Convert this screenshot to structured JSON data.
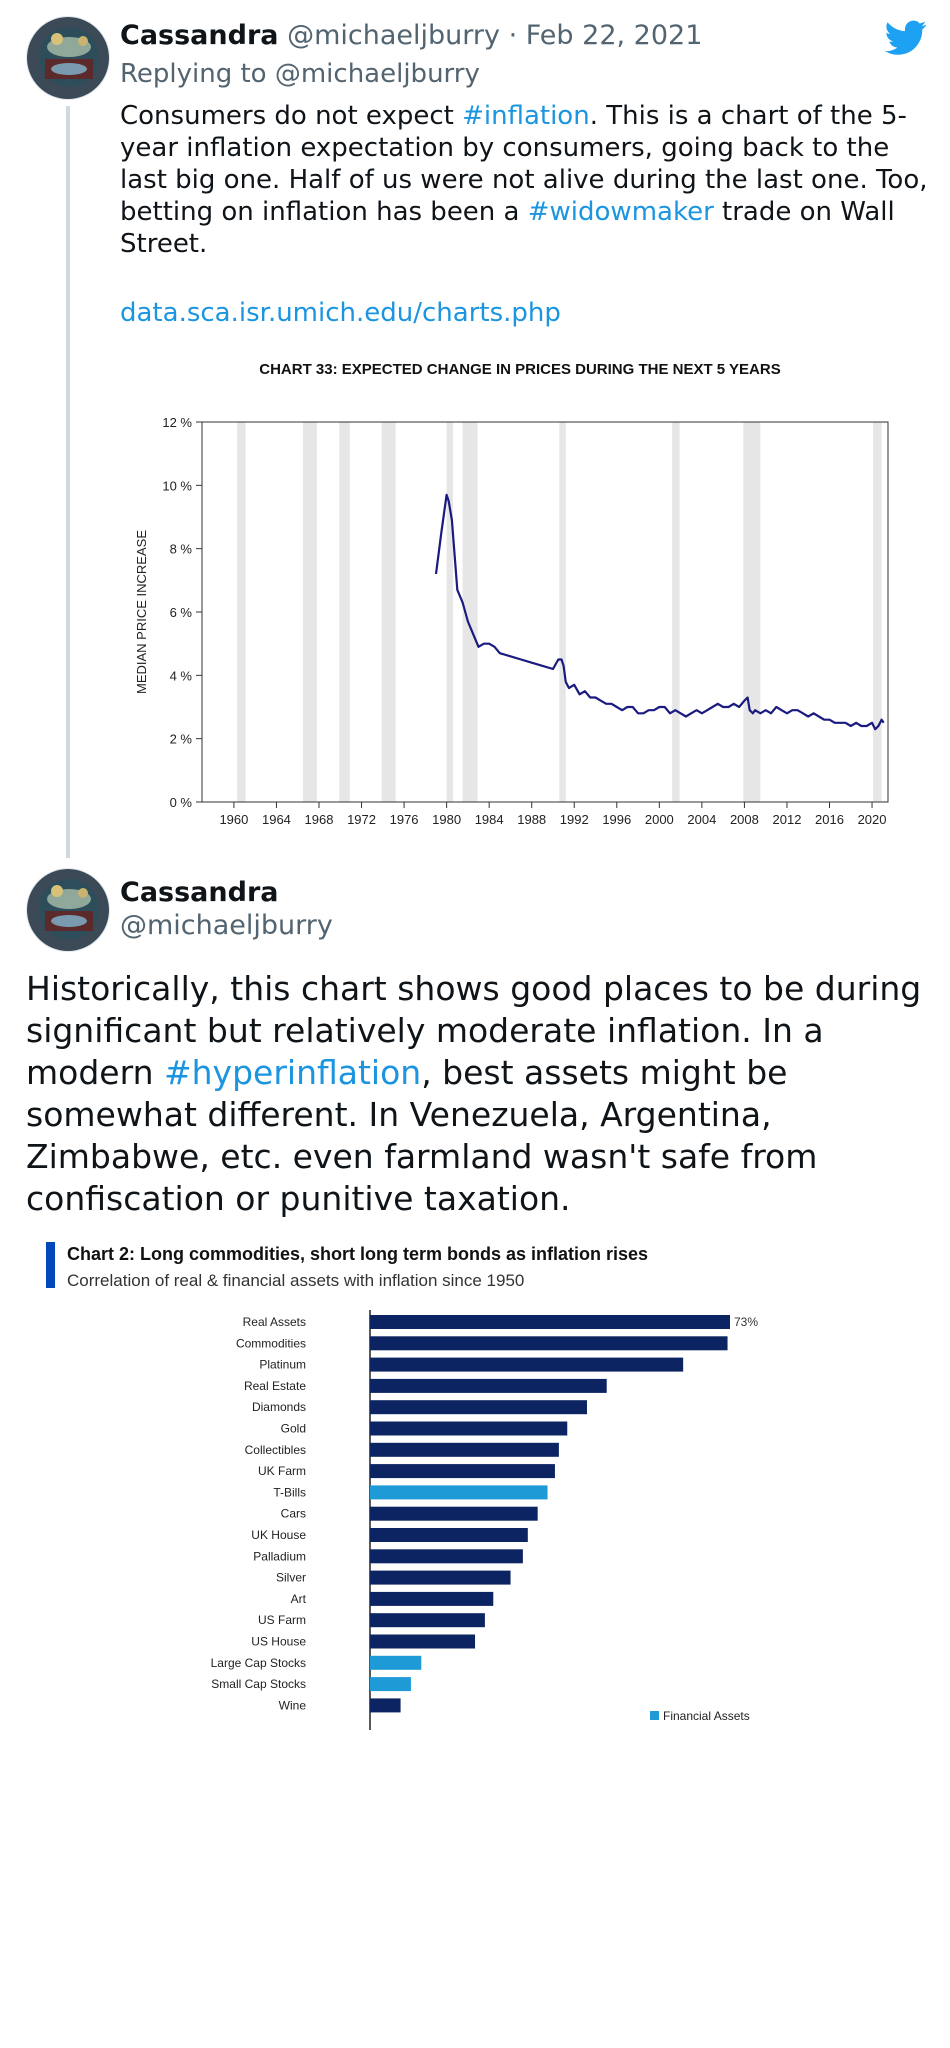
{
  "tweet1": {
    "name": "Cassandra",
    "handle": "@michaeljburry",
    "separator": "·",
    "date": "Feb 22, 2021",
    "reply_prefix": "Replying to",
    "reply_handle": "@michaeljburry",
    "text_parts": [
      "Consumers do not expect ",
      "#inflation",
      ". This is a chart of the 5-year inflation expectation by consumers, going back to the last big one. Half of us were not alive during the last one. Too, betting on inflation has been a ",
      "#widowmaker",
      " trade on Wall Street."
    ],
    "link": "data.sca.isr.umich.edu/charts.php"
  },
  "tweet2": {
    "name": "Cassandra",
    "handle": "@michaeljburry",
    "text_parts": [
      "Historically, this chart shows good places to be during significant but relatively moderate inflation. In a modern ",
      "#hyperinflation",
      ", best assets might be somewhat different. In Venezuela, Argentina, Zimbabwe, etc. even farmland wasn't safe from confiscation or punitive taxation."
    ]
  },
  "colors": {
    "twitter_blue": "#1da1f2",
    "link_blue": "#1b95e0",
    "navy_line": "#1a1a80",
    "bar_dark": "#0c2461",
    "bar_light": "#1e9bd7",
    "recession_band": "#e6e6e6"
  },
  "chart_data": [
    {
      "type": "line",
      "title": "CHART 33: EXPECTED CHANGE IN PRICES DURING THE NEXT 5 YEARS",
      "ylabel": "MEDIAN PRICE INCREASE",
      "xlabel": "",
      "ylim": [
        0,
        12
      ],
      "xlim": [
        1957,
        2021.5
      ],
      "y_ticks": [
        "0 %",
        "2 %",
        "4 %",
        "6 %",
        "8 %",
        "10 %",
        "12 %"
      ],
      "y_tick_values": [
        0,
        2,
        4,
        6,
        8,
        10,
        12
      ],
      "x_ticks": [
        "1960",
        "1964",
        "1968",
        "1972",
        "1976",
        "1980",
        "1984",
        "1988",
        "1992",
        "1996",
        "2000",
        "2004",
        "2008",
        "2012",
        "2016",
        "2020"
      ],
      "x_tick_values": [
        1960,
        1964,
        1968,
        1972,
        1976,
        1980,
        1984,
        1988,
        1992,
        1996,
        2000,
        2004,
        2008,
        2012,
        2016,
        2020
      ],
      "recessions": [
        [
          1960.3,
          1961.1
        ],
        [
          1966.5,
          1967.8
        ],
        [
          1969.9,
          1970.9
        ],
        [
          1973.9,
          1975.2
        ],
        [
          1980.0,
          1980.6
        ],
        [
          1981.5,
          1982.9
        ],
        [
          1990.6,
          1991.2
        ],
        [
          2001.2,
          2001.9
        ],
        [
          2007.9,
          2009.5
        ],
        [
          2020.1,
          2020.9
        ]
      ],
      "series": [
        {
          "x": [
            1979.0,
            1979.5,
            1980.0,
            1980.2,
            1980.5,
            1980.8,
            1981.0,
            1981.5,
            1982.0,
            1982.5,
            1983.0,
            1983.5,
            1984.0,
            1984.5,
            1985.0,
            1986.0,
            1987.0,
            1988.0,
            1989.0,
            1990.0,
            1990.5,
            1990.8,
            1991.0,
            1991.2,
            1991.5,
            1992.0,
            1992.5,
            1993.0,
            1993.5,
            1994.0,
            1994.5,
            1995.0,
            1995.5,
            1996.0,
            1996.5,
            1997.0,
            1997.5,
            1998.0,
            1998.5,
            1999.0,
            1999.5,
            2000.0,
            2000.5,
            2001.0,
            2001.5,
            2002.0,
            2002.5,
            2003.0,
            2003.5,
            2004.0,
            2004.5,
            2005.0,
            2005.5,
            2006.0,
            2006.5,
            2007.0,
            2007.5,
            2008.0,
            2008.3,
            2008.5,
            2008.8,
            2009.0,
            2009.5,
            2010.0,
            2010.5,
            2011.0,
            2011.5,
            2012.0,
            2012.5,
            2013.0,
            2013.5,
            2014.0,
            2014.5,
            2015.0,
            2015.5,
            2016.0,
            2016.5,
            2017.0,
            2017.5,
            2018.0,
            2018.5,
            2019.0,
            2019.5,
            2020.0,
            2020.3,
            2020.6,
            2020.9,
            2021.1
          ],
          "y": [
            7.2,
            8.5,
            9.7,
            9.5,
            8.9,
            7.6,
            6.7,
            6.3,
            5.7,
            5.3,
            4.9,
            5.0,
            5.0,
            4.9,
            4.7,
            4.6,
            4.5,
            4.4,
            4.3,
            4.2,
            4.5,
            4.5,
            4.3,
            3.8,
            3.6,
            3.7,
            3.4,
            3.5,
            3.3,
            3.3,
            3.2,
            3.1,
            3.1,
            3.0,
            2.9,
            3.0,
            3.0,
            2.8,
            2.8,
            2.9,
            2.9,
            3.0,
            3.0,
            2.8,
            2.9,
            2.8,
            2.7,
            2.8,
            2.9,
            2.8,
            2.9,
            3.0,
            3.1,
            3.0,
            3.0,
            3.1,
            3.0,
            3.2,
            3.3,
            2.9,
            2.8,
            2.9,
            2.8,
            2.9,
            2.8,
            3.0,
            2.9,
            2.8,
            2.9,
            2.9,
            2.8,
            2.7,
            2.8,
            2.7,
            2.6,
            2.6,
            2.5,
            2.5,
            2.5,
            2.4,
            2.5,
            2.4,
            2.4,
            2.5,
            2.3,
            2.4,
            2.6,
            2.5
          ]
        }
      ]
    },
    {
      "type": "bar",
      "orientation": "horizontal",
      "title": "Chart 2: Long commodities, short long term bonds as inflation rises",
      "subtitle": "Correlation of real & financial assets with inflation since 1950",
      "categories": [
        "Real Assets",
        "Commodities",
        "Platinum",
        "Real Estate",
        "Diamonds",
        "Gold",
        "Collectibles",
        "UK Farm",
        "T-Bills",
        "Cars",
        "UK House",
        "Palladium",
        "Silver",
        "Art",
        "US Farm",
        "US House",
        "Large Cap Stocks",
        "Small Cap Stocks",
        "Wine"
      ],
      "values": [
        73,
        72.5,
        63.5,
        48,
        44,
        40,
        38.3,
        37.5,
        36,
        34,
        32,
        31,
        28.5,
        25,
        23.3,
        21.3,
        10.4,
        8.3,
        6.2
      ],
      "financial": [
        false,
        false,
        false,
        false,
        false,
        false,
        false,
        false,
        true,
        false,
        false,
        false,
        false,
        false,
        false,
        false,
        true,
        true,
        false
      ],
      "value_labels": [
        "73%"
      ],
      "xlim": [
        0,
        100
      ],
      "legend": [
        "Financial Assets"
      ],
      "legend_position": "bottom-right"
    }
  ]
}
